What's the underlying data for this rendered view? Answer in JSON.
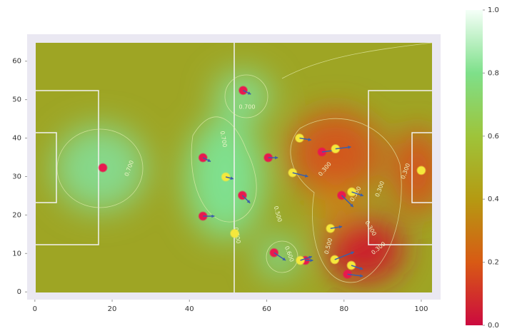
{
  "chart_data": {
    "type": "scatter",
    "xlim": [
      -2,
      105
    ],
    "ylim": [
      -2,
      67
    ],
    "xticks": [
      0,
      20,
      40,
      60,
      80,
      100
    ],
    "yticks": [
      0,
      10,
      20,
      30,
      40,
      50,
      60
    ],
    "grid": false,
    "series": [
      {
        "color": "#e8194f",
        "x": [
          17.6,
          53.9,
          43.5,
          60.4,
          53.7,
          43.5,
          61.9,
          70,
          74.3,
          79.4,
          80.9
        ],
        "y": [
          32.3,
          52.4,
          34.9,
          34.9,
          25.1,
          19.7,
          10.2,
          8.2,
          36.4,
          25.1,
          4.6
        ],
        "vx": [
          0,
          2,
          2,
          2.5,
          2,
          3,
          3,
          2,
          4,
          3,
          4
        ],
        "vy": [
          0,
          -1,
          -1,
          0,
          -2,
          0,
          -2,
          0,
          0.5,
          -3,
          -0.5
        ]
      },
      {
        "color": "#f5e83c",
        "x": [
          68.5,
          77.8,
          66.7,
          49.4,
          100,
          82,
          76.5,
          51.7,
          68.7,
          77.6,
          81.9
        ],
        "y": [
          40,
          37.2,
          31,
          29.9,
          31.6,
          26,
          16.5,
          15.2,
          8.2,
          8.4,
          6.9
        ],
        "vx": [
          3,
          4,
          4,
          2,
          0,
          3,
          3,
          0,
          3,
          5,
          3
        ],
        "vy": [
          -0.5,
          0.5,
          -1,
          -0.5,
          0,
          -1,
          0.5,
          0,
          1,
          2,
          -1
        ]
      }
    ],
    "arrow_color": "#3b5fa8",
    "colorbar": {
      "lim": [
        0,
        1
      ],
      "ticks": [
        {
          "value": 0,
          "label": "0.0"
        },
        {
          "value": 0.2,
          "label": "0.2"
        },
        {
          "value": 0.4,
          "label": "0.4"
        },
        {
          "value": 0.6,
          "label": "0.6"
        },
        {
          "value": 0.8,
          "label": "0.8"
        },
        {
          "value": 1,
          "label": "1.0"
        }
      ],
      "colors": [
        "#cc0a3f",
        "#d85a14",
        "#b59a12",
        "#9ec43a",
        "#7ee08a",
        "#f5fff8"
      ]
    },
    "contour_labels": [
      "0.700",
      "0.700",
      "0.700",
      "0.600",
      "0.500",
      "0.700",
      "0.500",
      "0.300",
      "0.300",
      "0.300",
      "0.300",
      "0.500",
      "0.300"
    ]
  }
}
